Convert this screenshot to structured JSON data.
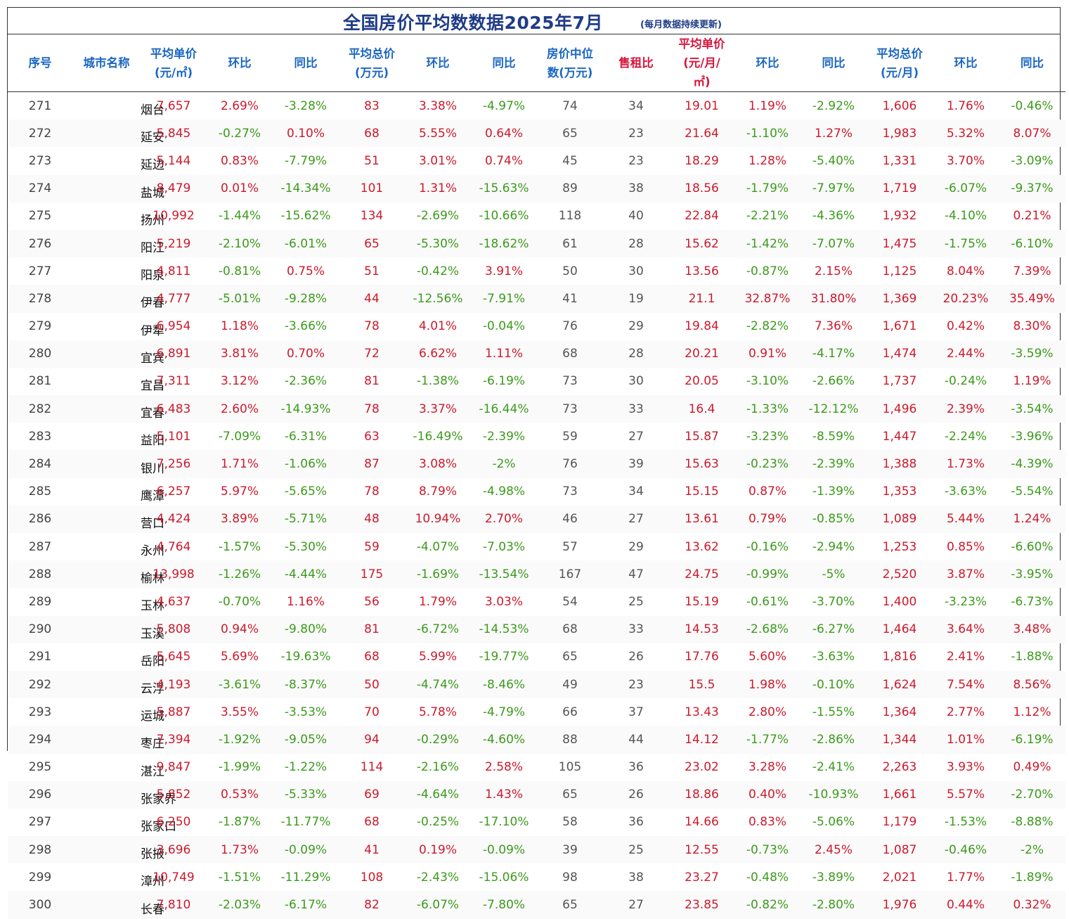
{
  "title": "全国房价平均数数据2025年7月",
  "note": "(每月数据持续更新)",
  "headers": [
    {
      "lines": [
        "序号"
      ],
      "color": "blue"
    },
    {
      "lines": [
        "城市名称"
      ],
      "color": "blue"
    },
    {
      "lines": [
        "平均单价",
        "(元/㎡)"
      ],
      "color": "blue"
    },
    {
      "lines": [
        "环比"
      ],
      "color": "blue"
    },
    {
      "lines": [
        "同比"
      ],
      "color": "blue"
    },
    {
      "lines": [
        "平均总价",
        "(万元)"
      ],
      "color": "blue"
    },
    {
      "lines": [
        "环比"
      ],
      "color": "blue"
    },
    {
      "lines": [
        "同比"
      ],
      "color": "blue"
    },
    {
      "lines": [
        "房价中位",
        "数(万元)"
      ],
      "color": "blue"
    },
    {
      "lines": [
        "售租比"
      ],
      "color": "red"
    },
    {
      "lines": [
        "平均单价",
        "(元/月/",
        "㎡)"
      ],
      "color": "red"
    },
    {
      "lines": [
        "环比"
      ],
      "color": "blue"
    },
    {
      "lines": [
        "同比"
      ],
      "color": "blue"
    },
    {
      "lines": [
        "平均总价",
        "(元/月)"
      ],
      "color": "blue"
    },
    {
      "lines": [
        "环比"
      ],
      "color": "blue"
    },
    {
      "lines": [
        "同比"
      ],
      "color": "blue"
    }
  ],
  "rows": [
    [
      "271",
      "烟台",
      "7,657",
      "2.69%",
      "-3.28%",
      "83",
      "3.38%",
      "-4.97%",
      "74",
      "34",
      "19.01",
      "1.19%",
      "-2.92%",
      "1,606",
      "1.76%",
      "-0.46%"
    ],
    [
      "272",
      "延安",
      "5,845",
      "-0.27%",
      "0.10%",
      "68",
      "5.55%",
      "0.64%",
      "65",
      "23",
      "21.64",
      "-1.10%",
      "1.27%",
      "1,983",
      "5.32%",
      "8.07%"
    ],
    [
      "273",
      "延边",
      "5,144",
      "0.83%",
      "-7.79%",
      "51",
      "3.01%",
      "0.74%",
      "45",
      "23",
      "18.29",
      "1.28%",
      "-5.40%",
      "1,331",
      "3.70%",
      "-3.09%"
    ],
    [
      "274",
      "盐城",
      "8,479",
      "0.01%",
      "-14.34%",
      "101",
      "1.31%",
      "-15.63%",
      "89",
      "38",
      "18.56",
      "-1.79%",
      "-7.97%",
      "1,719",
      "-6.07%",
      "-9.37%"
    ],
    [
      "275",
      "扬州",
      "10,992",
      "-1.44%",
      "-15.62%",
      "134",
      "-2.69%",
      "-10.66%",
      "118",
      "40",
      "22.84",
      "-2.21%",
      "-4.36%",
      "1,932",
      "-4.10%",
      "0.21%"
    ],
    [
      "276",
      "阳江",
      "5,219",
      "-2.10%",
      "-6.01%",
      "65",
      "-5.30%",
      "-18.62%",
      "61",
      "28",
      "15.62",
      "-1.42%",
      "-7.07%",
      "1,475",
      "-1.75%",
      "-6.10%"
    ],
    [
      "277",
      "阳泉",
      "4,811",
      "-0.81%",
      "0.75%",
      "51",
      "-0.42%",
      "3.91%",
      "50",
      "30",
      "13.56",
      "-0.87%",
      "2.15%",
      "1,125",
      "8.04%",
      "7.39%"
    ],
    [
      "278",
      "伊春",
      "4,777",
      "-5.01%",
      "-9.28%",
      "44",
      "-12.56%",
      "-7.91%",
      "41",
      "19",
      "21.1",
      "32.87%",
      "31.80%",
      "1,369",
      "20.23%",
      "35.49%"
    ],
    [
      "279",
      "伊犁",
      "6,954",
      "1.18%",
      "-3.66%",
      "78",
      "4.01%",
      "-0.04%",
      "76",
      "29",
      "19.84",
      "-2.82%",
      "7.36%",
      "1,671",
      "0.42%",
      "8.30%"
    ],
    [
      "280",
      "宜宾",
      "6,891",
      "3.81%",
      "0.70%",
      "72",
      "6.62%",
      "1.11%",
      "68",
      "28",
      "20.21",
      "0.91%",
      "-4.17%",
      "1,474",
      "2.44%",
      "-3.59%"
    ],
    [
      "281",
      "宜昌",
      "7,311",
      "3.12%",
      "-2.36%",
      "81",
      "-1.38%",
      "-6.19%",
      "73",
      "30",
      "20.05",
      "-3.10%",
      "-2.66%",
      "1,737",
      "-0.24%",
      "1.19%"
    ],
    [
      "282",
      "宜春",
      "6,483",
      "2.60%",
      "-14.93%",
      "78",
      "3.37%",
      "-16.44%",
      "73",
      "33",
      "16.4",
      "-1.33%",
      "-12.12%",
      "1,496",
      "2.39%",
      "-3.54%"
    ],
    [
      "283",
      "益阳",
      "5,101",
      "-7.09%",
      "-6.31%",
      "63",
      "-16.49%",
      "-2.39%",
      "59",
      "27",
      "15.87",
      "-3.23%",
      "-8.59%",
      "1,447",
      "-2.24%",
      "-3.96%"
    ],
    [
      "284",
      "银川",
      "7,256",
      "1.71%",
      "-1.06%",
      "87",
      "3.08%",
      "-2%",
      "76",
      "39",
      "15.63",
      "-0.23%",
      "-2.39%",
      "1,388",
      "1.73%",
      "-4.39%"
    ],
    [
      "285",
      "鹰潭",
      "6,257",
      "5.97%",
      "-5.65%",
      "78",
      "8.79%",
      "-4.98%",
      "73",
      "34",
      "15.15",
      "0.87%",
      "-1.39%",
      "1,353",
      "-3.63%",
      "-5.54%"
    ],
    [
      "286",
      "营口",
      "4,424",
      "3.89%",
      "-5.71%",
      "48",
      "10.94%",
      "2.70%",
      "46",
      "27",
      "13.61",
      "0.79%",
      "-0.85%",
      "1,089",
      "5.44%",
      "1.24%"
    ],
    [
      "287",
      "永州",
      "4,764",
      "-1.57%",
      "-5.30%",
      "59",
      "-4.07%",
      "-7.03%",
      "57",
      "29",
      "13.62",
      "-0.16%",
      "-2.94%",
      "1,253",
      "0.85%",
      "-6.60%"
    ],
    [
      "288",
      "榆林",
      "13,998",
      "-1.26%",
      "-4.44%",
      "175",
      "-1.69%",
      "-13.54%",
      "167",
      "47",
      "24.75",
      "-0.99%",
      "-5%",
      "2,520",
      "3.87%",
      "-3.95%"
    ],
    [
      "289",
      "玉林",
      "4,637",
      "-0.70%",
      "1.16%",
      "56",
      "1.79%",
      "3.03%",
      "54",
      "25",
      "15.19",
      "-0.61%",
      "-3.70%",
      "1,400",
      "-3.23%",
      "-6.73%"
    ],
    [
      "290",
      "玉溪",
      "5,808",
      "0.94%",
      "-9.80%",
      "81",
      "-6.72%",
      "-14.53%",
      "68",
      "33",
      "14.53",
      "-2.68%",
      "-6.27%",
      "1,464",
      "3.64%",
      "3.48%"
    ],
    [
      "291",
      "岳阳",
      "5,645",
      "5.69%",
      "-19.63%",
      "68",
      "5.99%",
      "-19.77%",
      "65",
      "26",
      "17.76",
      "5.60%",
      "-3.63%",
      "1,816",
      "2.41%",
      "-1.88%"
    ],
    [
      "292",
      "云浮",
      "4,193",
      "-3.61%",
      "-8.37%",
      "50",
      "-4.74%",
      "-8.46%",
      "49",
      "23",
      "15.5",
      "1.98%",
      "-0.10%",
      "1,624",
      "7.54%",
      "8.56%"
    ],
    [
      "293",
      "运城",
      "5,887",
      "3.55%",
      "-3.53%",
      "70",
      "5.78%",
      "-4.79%",
      "66",
      "37",
      "13.43",
      "2.80%",
      "-1.55%",
      "1,364",
      "2.77%",
      "1.12%"
    ],
    [
      "294",
      "枣庄",
      "7,394",
      "-1.92%",
      "-9.05%",
      "94",
      "-0.29%",
      "-4.60%",
      "88",
      "44",
      "14.12",
      "-1.77%",
      "-2.86%",
      "1,344",
      "1.01%",
      "-6.19%"
    ],
    [
      "295",
      "湛江",
      "9,847",
      "-1.99%",
      "-1.22%",
      "114",
      "-2.16%",
      "2.58%",
      "105",
      "36",
      "23.02",
      "3.28%",
      "-2.41%",
      "2,263",
      "3.93%",
      "0.49%"
    ],
    [
      "296",
      "张家界",
      "5,852",
      "0.53%",
      "-5.33%",
      "69",
      "-4.64%",
      "1.43%",
      "65",
      "26",
      "18.86",
      "0.40%",
      "-10.93%",
      "1,661",
      "5.57%",
      "-2.70%"
    ],
    [
      "297",
      "张家口",
      "6,250",
      "-1.87%",
      "-11.77%",
      "68",
      "-0.25%",
      "-17.10%",
      "58",
      "36",
      "14.66",
      "0.83%",
      "-5.06%",
      "1,179",
      "-1.53%",
      "-8.88%"
    ],
    [
      "298",
      "张掖",
      "3,696",
      "1.73%",
      "-0.09%",
      "41",
      "0.19%",
      "-0.09%",
      "39",
      "25",
      "12.55",
      "-0.73%",
      "2.45%",
      "1,087",
      "-0.46%",
      "-2%"
    ],
    [
      "299",
      "漳州",
      "10,749",
      "-1.51%",
      "-11.29%",
      "108",
      "-2.43%",
      "-15.06%",
      "98",
      "38",
      "23.27",
      "-0.48%",
      "-3.89%",
      "2,021",
      "1.77%",
      "-1.89%"
    ],
    [
      "300",
      "长春",
      "7,810",
      "-2.03%",
      "-6.17%",
      "82",
      "-6.07%",
      "-7.80%",
      "65",
      "27",
      "23.85",
      "-0.82%",
      "-2.80%",
      "1,976",
      "0.44%",
      "0.32%"
    ]
  ],
  "colors": {
    "title": "#1f3c88",
    "header_blue": "#1b67c2",
    "header_red": "#d4163c",
    "positive": "#cc1a2c",
    "negative": "#3c9a1c"
  }
}
